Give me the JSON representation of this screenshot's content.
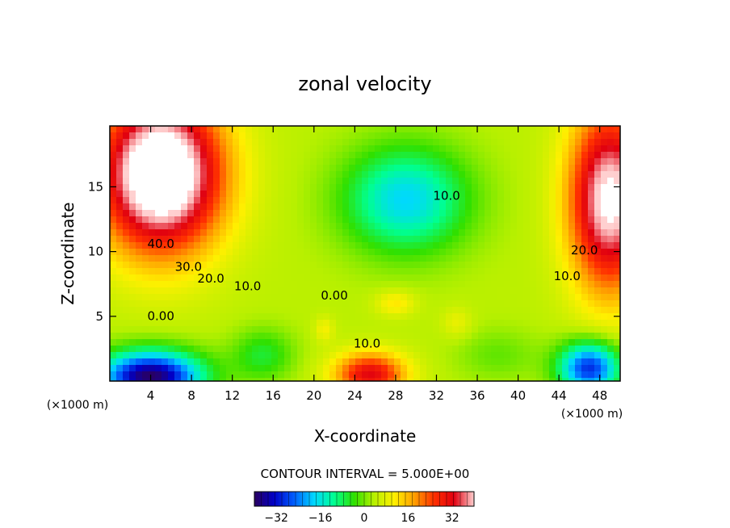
{
  "chart_data": {
    "type": "heatmap",
    "title": "zonal velocity",
    "xlabel": "X-coordinate",
    "ylabel": "Z-coordinate",
    "x_unit": "(×1000 m)",
    "y_unit": "(×1000 m)",
    "xlim": [
      0,
      50
    ],
    "ylim": [
      0,
      19.7
    ],
    "x_ticks": [
      "4",
      "8",
      "12",
      "16",
      "20",
      "24",
      "28",
      "32",
      "36",
      "40",
      "44",
      "48"
    ],
    "y_ticks": [
      "5",
      "10",
      "15"
    ],
    "contour_interval_text": "CONTOUR INTERVAL = 5.000E+00",
    "colorbar": {
      "range": [
        -40,
        40
      ],
      "tick_labels": [
        "-32",
        "-16",
        "0",
        "16",
        "32"
      ],
      "colors": [
        "#2a0060",
        "#0000c8",
        "#0060ff",
        "#00d8ff",
        "#00ff90",
        "#30e000",
        "#b8f000",
        "#fff000",
        "#ffa000",
        "#ff3000",
        "#e00010",
        "#ffd0d0"
      ]
    },
    "contour_labels": [
      {
        "text": "40.0",
        "x": 5,
        "y": 10.3
      },
      {
        "text": "30.0",
        "x": 7.7,
        "y": 8.5
      },
      {
        "text": "20.0",
        "x": 9.9,
        "y": 7.6
      },
      {
        "text": "10.0",
        "x": 13.5,
        "y": 7.0
      },
      {
        "text": "0.00",
        "x": 5,
        "y": 4.7
      },
      {
        "text": "0.00",
        "x": 22,
        "y": 6.3
      },
      {
        "text": "10.0",
        "x": 25.2,
        "y": 2.6
      },
      {
        "text": "10.0",
        "x": 33,
        "y": 14
      },
      {
        "text": "20.0",
        "x": 46.5,
        "y": 9.8
      },
      {
        "text": "10.0",
        "x": 44.8,
        "y": 7.8
      }
    ],
    "field": {
      "base": 4,
      "features": [
        {
          "x": 5,
          "y": 16,
          "sx": 6,
          "sy": 6,
          "amp": 50
        },
        {
          "x": 49,
          "y": 14,
          "sx": 4,
          "sy": 7,
          "amp": 40
        },
        {
          "x": 4,
          "y": 0.3,
          "sx": 5,
          "sy": 2,
          "amp": -44
        },
        {
          "x": 47,
          "y": 1,
          "sx": 3,
          "sy": 2,
          "amp": -34
        },
        {
          "x": 29,
          "y": 14,
          "sx": 6,
          "sy": 4,
          "amp": -22
        },
        {
          "x": 15,
          "y": 2,
          "sx": 3,
          "sy": 2,
          "amp": -10
        },
        {
          "x": 38,
          "y": 2,
          "sx": 4,
          "sy": 2,
          "amp": -5
        },
        {
          "x": 25.5,
          "y": 0.5,
          "sx": 3.5,
          "sy": 1.7,
          "amp": 28
        },
        {
          "x": 28,
          "y": 6,
          "sx": 2,
          "sy": 1,
          "amp": 8
        },
        {
          "x": 34,
          "y": 4.5,
          "sx": 1.5,
          "sy": 1.2,
          "amp": 5
        },
        {
          "x": 21,
          "y": 4,
          "sx": 1,
          "sy": 1,
          "amp": 6
        }
      ]
    }
  }
}
